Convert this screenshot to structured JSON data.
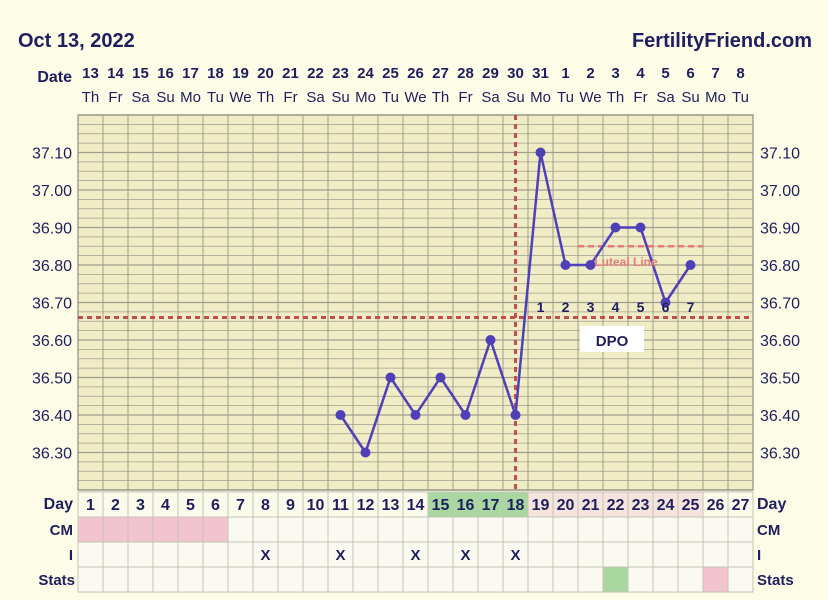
{
  "header": {
    "date": "Oct 13, 2022",
    "site": "FertilityFriend.com"
  },
  "labels": {
    "date_row": "Date",
    "day_row": "Day",
    "cm_row": "CM",
    "i_row": "I",
    "stats_row": "Stats",
    "luteal_line": "Luteal Line",
    "dpo": "DPO"
  },
  "chart_data": {
    "type": "line",
    "dates": [
      "13",
      "14",
      "15",
      "16",
      "17",
      "18",
      "19",
      "20",
      "21",
      "22",
      "23",
      "24",
      "25",
      "26",
      "27",
      "28",
      "29",
      "30",
      "31",
      "1",
      "2",
      "3",
      "4",
      "5",
      "6",
      "7",
      "8"
    ],
    "weekdays": [
      "Th",
      "Fr",
      "Sa",
      "Su",
      "Mo",
      "Tu",
      "We",
      "Th",
      "Fr",
      "Sa",
      "Su",
      "Mo",
      "Tu",
      "We",
      "Th",
      "Fr",
      "Sa",
      "Su",
      "Mo",
      "Tu",
      "We",
      "Th",
      "Fr",
      "Sa",
      "Su",
      "Mo",
      "Tu"
    ],
    "cycle_days": [
      1,
      2,
      3,
      4,
      5,
      6,
      7,
      8,
      9,
      10,
      11,
      12,
      13,
      14,
      15,
      16,
      17,
      18,
      19,
      20,
      21,
      22,
      23,
      24,
      25,
      26,
      27
    ],
    "temperatures": [
      null,
      null,
      null,
      null,
      null,
      null,
      null,
      null,
      null,
      null,
      36.4,
      36.3,
      36.5,
      36.4,
      36.5,
      36.4,
      36.6,
      36.4,
      37.1,
      36.8,
      36.8,
      36.9,
      36.9,
      36.7,
      36.8,
      null,
      null
    ],
    "y_ticks": [
      "37.10",
      "37.00",
      "36.90",
      "36.80",
      "36.70",
      "36.60",
      "36.50",
      "36.40",
      "36.30"
    ],
    "ylim": [
      36.2,
      37.2
    ],
    "coverline": 36.66,
    "ovulation_day": 18,
    "luteal_line_value": 36.85,
    "luteal_line_days": [
      21,
      25
    ],
    "dpo_labels": [
      "1",
      "2",
      "3",
      "4",
      "5",
      "6",
      "7"
    ],
    "dpo_start_day": 19,
    "fertile_days": [
      15,
      16,
      17,
      18
    ],
    "cm_days": [
      1,
      2,
      3,
      4,
      5,
      6
    ],
    "intercourse_days": [
      8,
      11,
      14,
      16,
      18
    ],
    "intercourse_mark": "X",
    "stats_green_day": 22,
    "stats_pink_day": 26,
    "colors": {
      "line": "#5040b8",
      "coverline": "#c0504d",
      "grid": "#9e9e8e",
      "fertile": "#a8d8a0",
      "cm": "#f2c4d0",
      "post_ovulation": "#f5e4dc",
      "luteal": "#e77b7b"
    }
  }
}
